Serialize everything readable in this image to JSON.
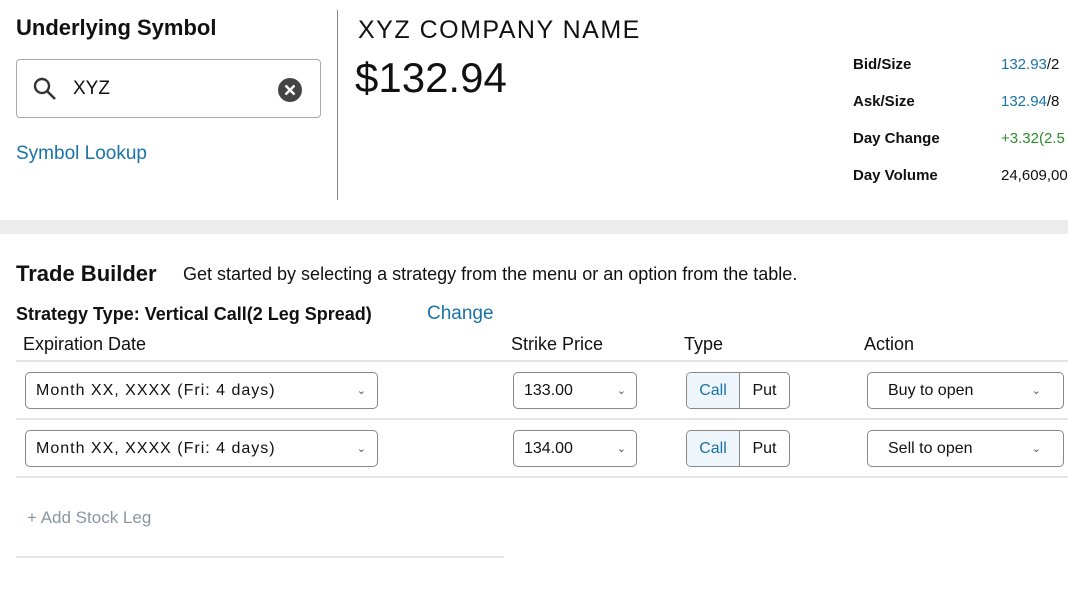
{
  "symbol": {
    "heading": "Underlying Symbol",
    "value": "XYZ",
    "lookup": "Symbol Lookup"
  },
  "company": {
    "name": "XYZ COMPANY NAME",
    "price": "$132.94"
  },
  "quote": [
    {
      "label": "Bid/Size",
      "price": "132.93",
      "size": "/2"
    },
    {
      "label": "Ask/Size",
      "price": "132.94",
      "size": "/8"
    },
    {
      "label": "Day Change",
      "value": "+3.32(2.5"
    },
    {
      "label": "Day Volume",
      "value": "24,609,00"
    }
  ],
  "colors": {
    "link": "#1a73a8",
    "positive": "#2e8b2e"
  },
  "trade_builder": {
    "title": "Trade Builder",
    "hint": "Get started by selecting a strategy from the menu or an option from the table.",
    "strategy": "Strategy Type: Vertical Call(2 Leg Spread)",
    "change": "Change",
    "columns": [
      "Expiration Date",
      "Strike Price",
      "Type",
      "Action"
    ],
    "legs": [
      {
        "expiration": "Month XX, XXXX (Fri: 4 days)",
        "strike": "133.00",
        "call": "Call",
        "put": "Put",
        "selected": "Call",
        "action": "Buy to open"
      },
      {
        "expiration": "Month XX, XXXX (Fri: 4 days)",
        "strike": "134.00",
        "call": "Call",
        "put": "Put",
        "selected": "Call",
        "action": "Sell to open"
      }
    ],
    "add_stock_leg": "+ Add Stock Leg"
  }
}
